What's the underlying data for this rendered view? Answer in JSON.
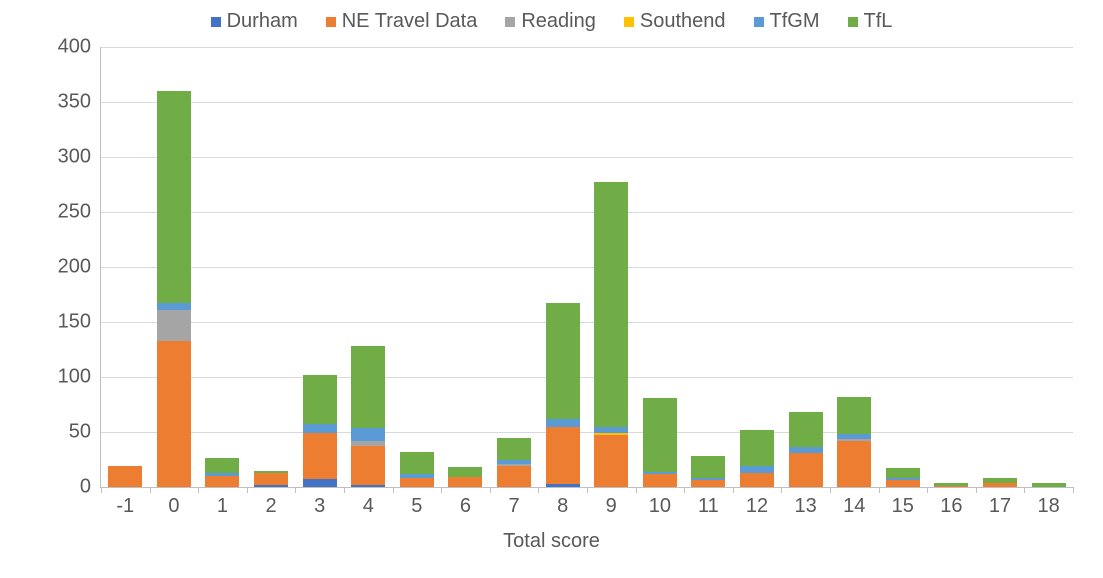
{
  "chart": {
    "type": "stacked-bar",
    "background_color": "#ffffff",
    "grid_color": "#d9d9d9",
    "axis_color": "#bfbfbf",
    "text_color": "#595959",
    "label_fontsize": 20,
    "legend_fontsize": 20,
    "xaxis": {
      "title": "Total score"
    },
    "ylim": [
      0,
      400
    ],
    "ytick_step": 50,
    "yticks": [
      0,
      50,
      100,
      150,
      200,
      250,
      300,
      350,
      400
    ],
    "bar_width_ratio": 0.7,
    "series": [
      {
        "key": "durham",
        "label": "Durham",
        "color": "#4472c4"
      },
      {
        "key": "netravel",
        "label": "NE Travel Data",
        "color": "#ed7d31"
      },
      {
        "key": "reading",
        "label": "Reading",
        "color": "#a5a5a5"
      },
      {
        "key": "southend",
        "label": "Southend",
        "color": "#ffc000"
      },
      {
        "key": "tfgm",
        "label": "TfGM",
        "color": "#5b9bd5"
      },
      {
        "key": "tfl",
        "label": "TfL",
        "color": "#70ad47"
      }
    ],
    "categories": [
      "-1",
      "0",
      "1",
      "2",
      "3",
      "4",
      "5",
      "6",
      "7",
      "8",
      "9",
      "10",
      "11",
      "12",
      "13",
      "14",
      "15",
      "16",
      "17",
      "18"
    ],
    "data": {
      "-1": {
        "durham": 0,
        "netravel": 19,
        "reading": 0,
        "southend": 0,
        "tfgm": 0,
        "tfl": 0
      },
      "0": {
        "durham": 0,
        "netravel": 133,
        "reading": 28,
        "southend": 0,
        "tfgm": 6,
        "tfl": 193
      },
      "1": {
        "durham": 0,
        "netravel": 10,
        "reading": 0,
        "southend": 0,
        "tfgm": 3,
        "tfl": 13
      },
      "2": {
        "durham": 2,
        "netravel": 11,
        "reading": 0,
        "southend": 0,
        "tfgm": 0,
        "tfl": 2
      },
      "3": {
        "durham": 7,
        "netravel": 42,
        "reading": 0,
        "southend": 0,
        "tfgm": 8,
        "tfl": 45
      },
      "4": {
        "durham": 2,
        "netravel": 35,
        "reading": 5,
        "southend": 0,
        "tfgm": 12,
        "tfl": 74
      },
      "5": {
        "durham": 0,
        "netravel": 8,
        "reading": 0,
        "southend": 0,
        "tfgm": 4,
        "tfl": 20
      },
      "6": {
        "durham": 0,
        "netravel": 9,
        "reading": 0,
        "southend": 0,
        "tfgm": 0,
        "tfl": 9
      },
      "7": {
        "durham": 0,
        "netravel": 19,
        "reading": 2,
        "southend": 0,
        "tfgm": 4,
        "tfl": 20
      },
      "8": {
        "durham": 3,
        "netravel": 52,
        "reading": 0,
        "southend": 0,
        "tfgm": 7,
        "tfl": 105
      },
      "9": {
        "durham": 0,
        "netravel": 47,
        "reading": 0,
        "southend": 2,
        "tfgm": 6,
        "tfl": 222
      },
      "10": {
        "durham": 0,
        "netravel": 12,
        "reading": 0,
        "southend": 0,
        "tfgm": 2,
        "tfl": 67
      },
      "11": {
        "durham": 0,
        "netravel": 6,
        "reading": 0,
        "southend": 0,
        "tfgm": 2,
        "tfl": 20
      },
      "12": {
        "durham": 0,
        "netravel": 13,
        "reading": 0,
        "southend": 0,
        "tfgm": 6,
        "tfl": 33
      },
      "13": {
        "durham": 0,
        "netravel": 31,
        "reading": 0,
        "southend": 0,
        "tfgm": 5,
        "tfl": 32
      },
      "14": {
        "durham": 0,
        "netravel": 42,
        "reading": 2,
        "southend": 0,
        "tfgm": 4,
        "tfl": 34
      },
      "15": {
        "durham": 0,
        "netravel": 6,
        "reading": 0,
        "southend": 0,
        "tfgm": 2,
        "tfl": 9
      },
      "16": {
        "durham": 0,
        "netravel": 1,
        "reading": 0,
        "southend": 0,
        "tfgm": 0,
        "tfl": 3
      },
      "17": {
        "durham": 0,
        "netravel": 4,
        "reading": 0,
        "southend": 0,
        "tfgm": 0,
        "tfl": 4
      },
      "18": {
        "durham": 0,
        "netravel": 0,
        "reading": 0,
        "southend": 0,
        "tfgm": 0,
        "tfl": 4
      }
    }
  }
}
